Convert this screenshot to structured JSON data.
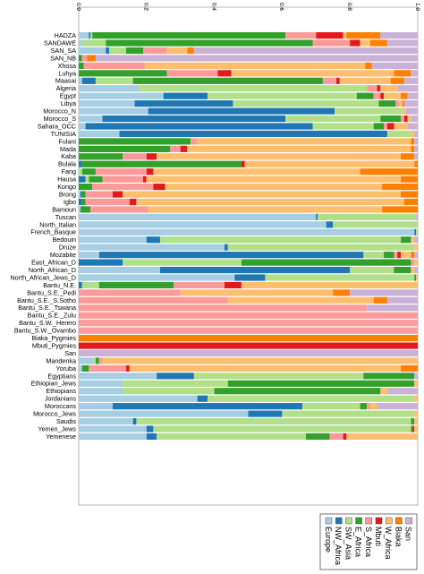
{
  "chart_data": {
    "type": "bar",
    "orientation": "horizontal-stacked",
    "xlim": [
      0,
      1
    ],
    "x_ticks": [
      "0.0",
      "0.2",
      "0.4",
      "0.6",
      "0.8",
      "1.0"
    ],
    "tick_label_rotation": "vertical",
    "legend": {
      "position": "bottom-right",
      "text_rotation": "vertical",
      "colors_with_labels": [
        {
          "name": "Europe",
          "color": "#a6cee3"
        },
        {
          "name": "NW_Africa",
          "color": "#1f78b4"
        },
        {
          "name": "SW_Asia",
          "color": "#b2df8a"
        },
        {
          "name": "E_Africa",
          "color": "#33a02c"
        },
        {
          "name": "S_Africa",
          "color": "#fb9a99"
        },
        {
          "name": "Mbuti",
          "color": "#e31a1c"
        },
        {
          "name": "W_Africa",
          "color": "#fdbf6f"
        },
        {
          "name": "Biaka",
          "color": "#ff7f00"
        },
        {
          "name": "San",
          "color": "#cab2d6"
        }
      ]
    },
    "series_colors": [
      "#a6cee3",
      "#1f78b4",
      "#b2df8a",
      "#33a02c",
      "#fb9a99",
      "#e31a1c",
      "#fdbf6f",
      "#ff7f00",
      "#cab2d6"
    ],
    "categories": [
      "HADZA",
      "SANDAWE",
      "SAN_SA",
      "SAN_NB",
      "Xhosa",
      "Luhya",
      "Maasai",
      "Algeria",
      "Egypt",
      "Libya",
      "Morocco_N",
      "Morocco_S",
      "Sahara_OCC",
      "TUNISIA",
      "Fulani",
      "Mada",
      "Kaba",
      "Bulala",
      "Fang",
      "Hausa",
      "Kongo",
      "Brong",
      "Igbo",
      "Bamoun",
      "Tuscan",
      "North_Italian",
      "French_Basque",
      "Bedouin",
      "Druze",
      "Mozabite",
      "East_African_D",
      "North_African_D",
      "North_African_Jews_D",
      "Bantu_N.E.",
      "Bantu_S.E._Pedi",
      "Bantu_S.E._S.Sotho",
      "Bantu_S.E._Tswana",
      "Bantu_S.E._Zulu",
      "Bantu_S.W._Herero",
      "Bantu_S.W._Ovambo",
      "Biaka_Pygmies",
      "Mbuti_Pygmies",
      "San",
      "Mandenka",
      "Yoruba",
      "Egyptians",
      "Ethiopian_Jews",
      "Ethiopians",
      "Jordanians",
      "Moroccans",
      "Morocco_Jews",
      "Saudis",
      "Yemen_Jews",
      "Yemenese"
    ],
    "rows": [
      [
        0.03,
        0.005,
        0.005,
        0.57,
        0.09,
        0.08,
        0.01,
        0.1,
        0.11
      ],
      [
        0.01,
        0.0,
        0.07,
        0.61,
        0.11,
        0.03,
        0.03,
        0.05,
        0.09
      ],
      [
        0.08,
        0.01,
        0.05,
        0.05,
        0.07,
        0.0,
        0.06,
        0.02,
        0.66
      ],
      [
        0.0,
        0.0,
        0.0,
        0.01,
        0.015,
        0.0,
        0.0,
        0.025,
        0.95
      ],
      [
        0.0,
        0.0,
        0.0,
        0.015,
        0.18,
        0.0,
        0.65,
        0.02,
        0.135
      ],
      [
        0.0,
        0.0,
        0.0,
        0.26,
        0.15,
        0.04,
        0.48,
        0.05,
        0.02
      ],
      [
        0.01,
        0.04,
        0.11,
        0.56,
        0.04,
        0.01,
        0.15,
        0.04,
        0.04
      ],
      [
        0.18,
        0.0,
        0.67,
        0.0,
        0.03,
        0.01,
        0.05,
        0.0,
        0.06
      ],
      [
        0.25,
        0.13,
        0.44,
        0.05,
        0.02,
        0.01,
        0.05,
        0.02,
        0.03
      ],
      [
        0.165,
        0.29,
        0.43,
        0.05,
        0.01,
        0.0,
        0.01,
        0.005,
        0.04
      ],
      [
        0.205,
        0.55,
        0.2,
        0.0,
        0.0,
        0.0,
        0.01,
        0.0,
        0.035
      ],
      [
        0.07,
        0.54,
        0.28,
        0.06,
        0.01,
        0.01,
        0.01,
        0.0,
        0.02
      ],
      [
        0.02,
        0.67,
        0.18,
        0.03,
        0.01,
        0.02,
        0.04,
        0.0,
        0.03
      ],
      [
        0.12,
        0.79,
        0.07,
        0.0,
        0.0,
        0.0,
        0.01,
        0.0,
        0.01
      ],
      [
        0.0,
        0.0,
        0.0,
        0.33,
        0.02,
        0.0,
        0.63,
        0.01,
        0.01
      ],
      [
        0.0,
        0.0,
        0.0,
        0.27,
        0.03,
        0.02,
        0.66,
        0.01,
        0.01
      ],
      [
        0.0,
        0.0,
        0.0,
        0.13,
        0.07,
        0.03,
        0.72,
        0.04,
        0.01
      ],
      [
        0.0,
        0.01,
        0.0,
        0.47,
        0.0,
        0.01,
        0.5,
        0.01,
        0.0
      ],
      [
        0.0,
        0.0,
        0.01,
        0.04,
        0.15,
        0.02,
        0.61,
        0.17,
        0.0
      ],
      [
        0.0,
        0.02,
        0.01,
        0.04,
        0.12,
        0.01,
        0.75,
        0.05,
        0.0
      ],
      [
        0.0,
        0.0,
        0.0,
        0.04,
        0.18,
        0.035,
        0.64,
        0.105,
        0.0
      ],
      [
        0.005,
        0.005,
        0.0,
        0.01,
        0.08,
        0.03,
        0.82,
        0.05,
        0.0
      ],
      [
        0.0,
        0.01,
        0.0,
        0.01,
        0.13,
        0.02,
        0.79,
        0.04,
        0.0
      ],
      [
        0.005,
        0.0,
        0.0,
        0.03,
        0.17,
        0.0,
        0.69,
        0.105,
        0.0
      ],
      [
        0.7,
        0.005,
        0.29,
        0.0,
        0.0,
        0.0,
        0.0,
        0.0,
        0.005
      ],
      [
        0.73,
        0.02,
        0.25,
        0.0,
        0.0,
        0.0,
        0.0,
        0.0,
        0.0
      ],
      [
        0.99,
        0.005,
        0.005,
        0.0,
        0.0,
        0.0,
        0.0,
        0.0,
        0.0
      ],
      [
        0.2,
        0.04,
        0.71,
        0.03,
        0.0,
        0.0,
        0.01,
        0.0,
        0.01
      ],
      [
        0.43,
        0.01,
        0.55,
        0.0,
        0.0,
        0.0,
        0.01,
        0.0,
        0.0
      ],
      [
        0.06,
        0.78,
        0.06,
        0.03,
        0.01,
        0.01,
        0.03,
        0.01,
        0.01
      ],
      [
        0.0,
        0.13,
        0.35,
        0.5,
        0.01,
        0.0,
        0.01,
        0.0,
        0.0
      ],
      [
        0.24,
        0.56,
        0.13,
        0.05,
        0.0,
        0.0,
        0.01,
        0.0,
        0.01
      ],
      [
        0.46,
        0.09,
        0.44,
        0.005,
        0.0,
        0.0,
        0.005,
        0.0,
        0.0
      ],
      [
        0.0,
        0.01,
        0.05,
        0.22,
        0.15,
        0.05,
        0.52,
        0.0,
        0.0
      ],
      [
        0.0,
        0.0,
        0.0,
        0.0,
        0.3,
        0.0,
        0.45,
        0.05,
        0.2
      ],
      [
        0.0,
        0.0,
        0.0,
        0.0,
        0.44,
        0.0,
        0.43,
        0.04,
        0.09
      ],
      [
        0.0,
        0.0,
        0.0,
        0.0,
        0.85,
        0.0,
        0.0,
        0.0,
        0.15
      ],
      [
        0.0,
        0.0,
        0.0,
        0.0,
        1.0,
        0.0,
        0.0,
        0.0,
        0.0
      ],
      [
        0.0,
        0.0,
        0.0,
        0.0,
        1.0,
        0.0,
        0.0,
        0.0,
        0.0
      ],
      [
        0.0,
        0.0,
        0.0,
        0.0,
        1.0,
        0.0,
        0.0,
        0.0,
        0.0
      ],
      [
        0.0,
        0.0,
        0.0,
        0.0,
        0.0,
        0.0,
        0.0,
        1.0,
        0.0
      ],
      [
        0.0,
        0.0,
        0.0,
        0.0,
        0.0,
        1.0,
        0.0,
        0.0,
        0.0
      ],
      [
        0.0,
        0.0,
        0.0,
        0.0,
        0.0,
        0.0,
        0.0,
        0.0,
        1.0
      ],
      [
        0.045,
        0.0,
        0.005,
        0.01,
        0.01,
        0.0,
        0.93,
        0.0,
        0.0
      ],
      [
        0.01,
        0.0,
        0.0,
        0.02,
        0.11,
        0.01,
        0.8,
        0.05,
        0.0
      ],
      [
        0.23,
        0.11,
        0.5,
        0.15,
        0.0,
        0.0,
        0.0,
        0.0,
        0.01
      ],
      [
        0.13,
        0.0,
        0.31,
        0.55,
        0.0,
        0.0,
        0.01,
        0.0,
        0.0
      ],
      [
        0.13,
        0.0,
        0.27,
        0.49,
        0.0,
        0.0,
        0.02,
        0.0,
        0.09
      ],
      [
        0.35,
        0.03,
        0.61,
        0.0,
        0.0,
        0.0,
        0.01,
        0.0,
        0.0
      ],
      [
        0.1,
        0.56,
        0.17,
        0.02,
        0.01,
        0.0,
        0.02,
        0.0,
        0.12
      ],
      [
        0.5,
        0.1,
        0.39,
        0.0,
        0.0,
        0.0,
        0.01,
        0.0,
        0.0
      ],
      [
        0.16,
        0.01,
        0.81,
        0.01,
        0.0,
        0.0,
        0.01,
        0.0,
        0.0
      ],
      [
        0.2,
        0.02,
        0.76,
        0.005,
        0.0,
        0.005,
        0.01,
        0.0,
        0.0
      ],
      [
        0.2,
        0.03,
        0.44,
        0.07,
        0.04,
        0.01,
        0.21,
        0.0,
        0.0
      ]
    ]
  }
}
